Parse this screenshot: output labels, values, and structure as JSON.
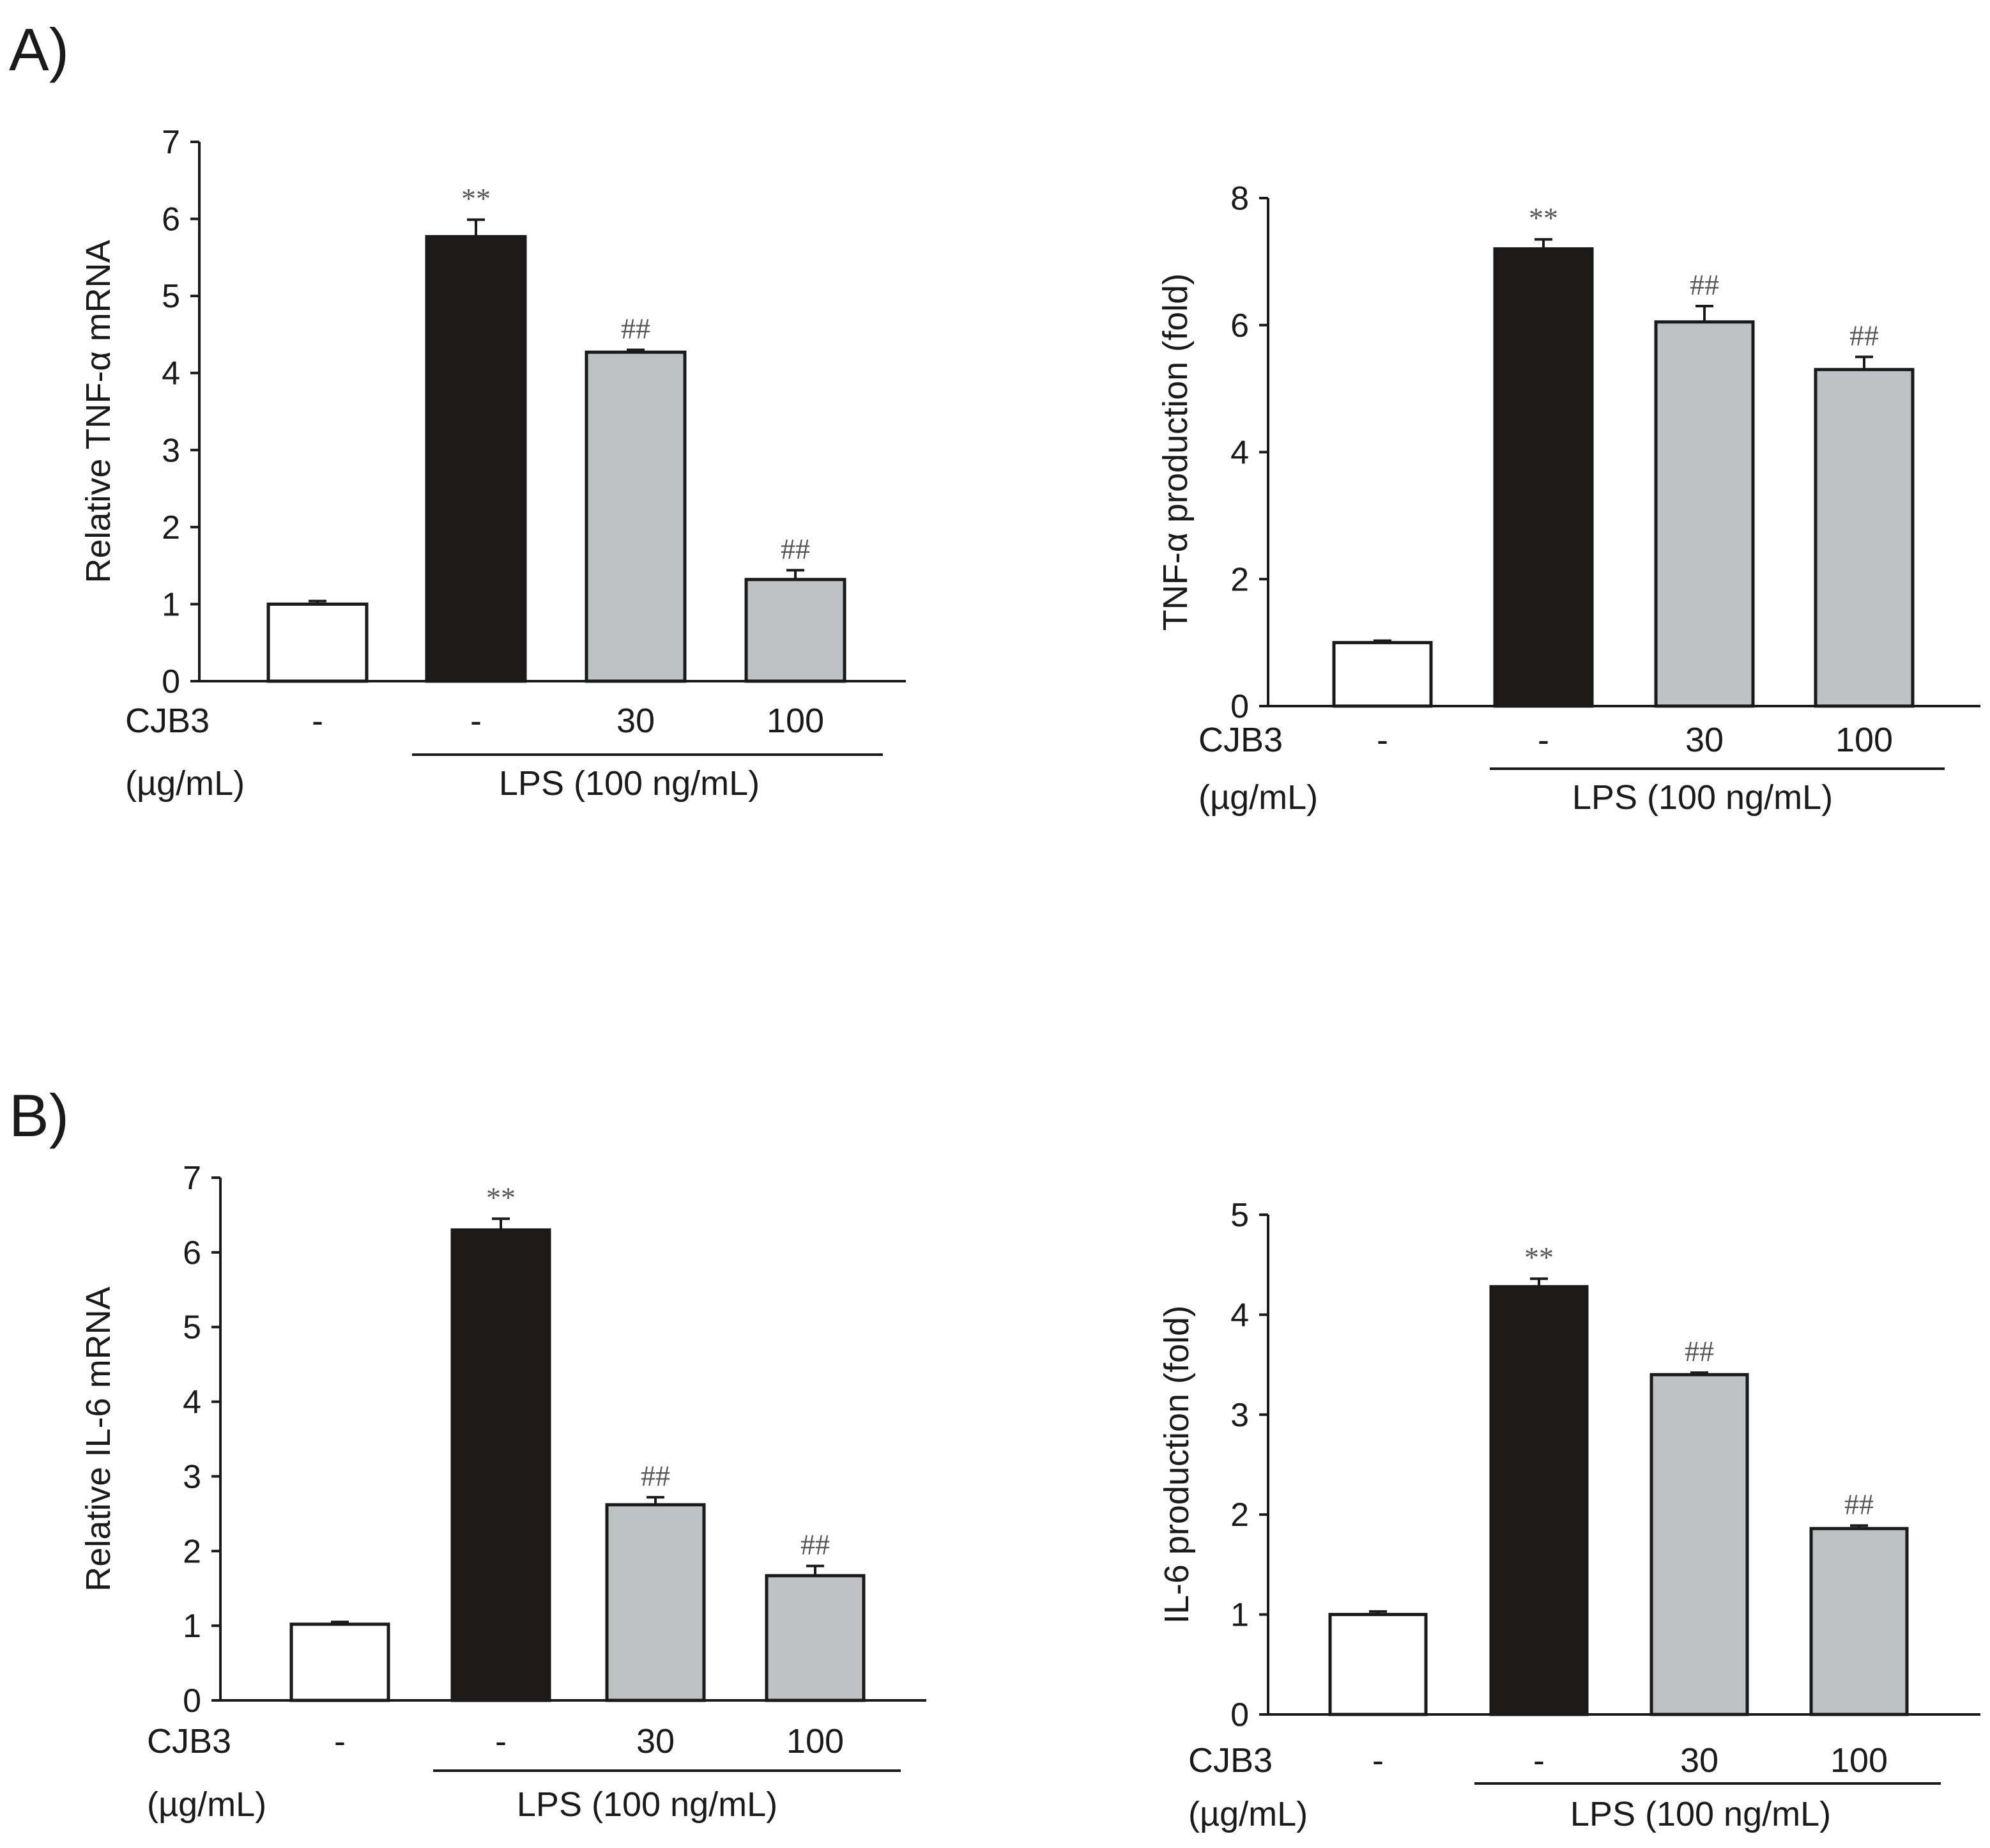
{
  "panel_labels": [
    "A)",
    "B)"
  ],
  "colors": {
    "control": "#ffffff",
    "lps": "#1f1a1a",
    "treated": "#bfc1c3",
    "axis": "#1a1a1a"
  },
  "condition_labels": {
    "cjb3": "CJB3",
    "units": "(µg/mL)",
    "lps": "LPS (100 ng/mL)",
    "doses": [
      "-",
      "-",
      "30",
      "100"
    ]
  },
  "chart_data": [
    {
      "type": "bar",
      "panel": "A)",
      "ylabel": "Relative TNF-α mRNA",
      "ylim": [
        0,
        7
      ],
      "yticks": [
        0,
        1,
        2,
        3,
        4,
        5,
        6,
        7
      ],
      "categories": [
        "-",
        "-",
        "30",
        "100"
      ],
      "values": [
        1.0,
        5.77,
        4.27,
        1.32
      ],
      "errors": [
        0.04,
        0.22,
        0.03,
        0.12
      ],
      "annotations": [
        "",
        "**",
        "##",
        "##"
      ]
    },
    {
      "type": "bar",
      "panel": "A)",
      "ylabel": "TNF-α production (fold)",
      "ylim": [
        0,
        8
      ],
      "yticks": [
        0,
        2,
        4,
        6,
        8
      ],
      "categories": [
        "-",
        "-",
        "30",
        "100"
      ],
      "values": [
        1.0,
        7.2,
        6.05,
        5.3
      ],
      "errors": [
        0.03,
        0.15,
        0.25,
        0.2
      ],
      "annotations": [
        "",
        "**",
        "##",
        "##"
      ]
    },
    {
      "type": "bar",
      "panel": "B)",
      "ylabel": "Relative IL-6 mRNA",
      "ylim": [
        0,
        7
      ],
      "yticks": [
        0,
        1,
        2,
        3,
        4,
        5,
        6,
        7
      ],
      "categories": [
        "-",
        "-",
        "30",
        "100"
      ],
      "values": [
        1.02,
        6.3,
        2.62,
        1.67
      ],
      "errors": [
        0.03,
        0.15,
        0.1,
        0.13
      ],
      "annotations": [
        "",
        "**",
        "##",
        "##"
      ]
    },
    {
      "type": "bar",
      "panel": "B)",
      "ylabel": "IL-6 production (fold)",
      "ylim": [
        0,
        5
      ],
      "yticks": [
        0,
        1,
        2,
        3,
        4,
        5
      ],
      "categories": [
        "-",
        "-",
        "30",
        "100"
      ],
      "values": [
        1.0,
        4.28,
        3.4,
        1.86
      ],
      "errors": [
        0.03,
        0.08,
        0.02,
        0.03
      ],
      "annotations": [
        "",
        "**",
        "##",
        "##"
      ]
    }
  ]
}
